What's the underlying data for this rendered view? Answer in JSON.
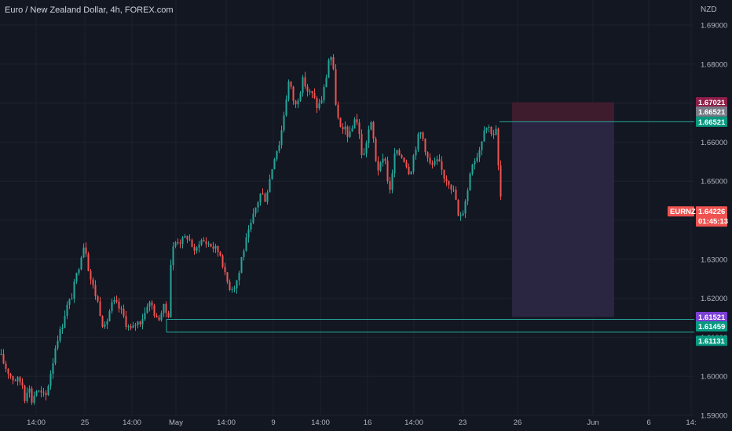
{
  "header": {
    "title": "Euro / New Zealand Dollar, 4h, FOREX.com",
    "currency": "NZD"
  },
  "colors": {
    "background": "#131722",
    "up": "#26a69a",
    "down": "#ef5350",
    "grid": "#1e222d",
    "text": "#b2b5be",
    "level_line": "#26a69a",
    "target_zone": "#2a2541",
    "stop_zone": "#3e1c2e"
  },
  "chart_data": {
    "type": "candlestick",
    "symbol": "EURNZD",
    "timeframe": "4h",
    "ylim": [
      1.588,
      1.692
    ],
    "yticks": [
      "1.69000",
      "1.68000",
      "1.67000",
      "1.66000",
      "1.65000",
      "1.64000",
      "1.63000",
      "1.62000",
      "1.61000",
      "1.60000",
      "1.59000"
    ],
    "xticks": [
      {
        "label": "14:00",
        "x": 46
      },
      {
        "label": "25",
        "x": 108
      },
      {
        "label": "14:00",
        "x": 168
      },
      {
        "label": "May",
        "x": 224
      },
      {
        "label": "14:00",
        "x": 288
      },
      {
        "label": "9",
        "x": 348
      },
      {
        "label": "14:00",
        "x": 408
      },
      {
        "label": "16",
        "x": 468
      },
      {
        "label": "14:00",
        "x": 527
      },
      {
        "label": "23",
        "x": 589
      },
      {
        "label": "26",
        "x": 659
      },
      {
        "label": "Jun",
        "x": 755
      },
      {
        "label": "6",
        "x": 826
      },
      {
        "label": "14:",
        "x": 880
      }
    ],
    "anchors": [
      [
        0,
        1.6055
      ],
      [
        8,
        1.602
      ],
      [
        16,
        1.5995
      ],
      [
        22,
        1.599
      ],
      [
        28,
        1.5985
      ],
      [
        32,
        1.594
      ],
      [
        36,
        1.5985
      ],
      [
        40,
        1.5935
      ],
      [
        46,
        1.5965
      ],
      [
        52,
        1.5955
      ],
      [
        58,
        1.5945
      ],
      [
        64,
        1.6005
      ],
      [
        68,
        1.6045
      ],
      [
        72,
        1.6095
      ],
      [
        78,
        1.612
      ],
      [
        84,
        1.6175
      ],
      [
        90,
        1.6195
      ],
      [
        96,
        1.6245
      ],
      [
        100,
        1.628
      ],
      [
        104,
        1.632
      ],
      [
        108,
        1.6345
      ],
      [
        112,
        1.6285
      ],
      [
        116,
        1.6245
      ],
      [
        120,
        1.622
      ],
      [
        126,
        1.618
      ],
      [
        130,
        1.614
      ],
      [
        134,
        1.612
      ],
      [
        138,
        1.616
      ],
      [
        144,
        1.619
      ],
      [
        150,
        1.618
      ],
      [
        156,
        1.616
      ],
      [
        162,
        1.613
      ],
      [
        168,
        1.6115
      ],
      [
        172,
        1.6135
      ],
      [
        178,
        1.614
      ],
      [
        184,
        1.616
      ],
      [
        188,
        1.619
      ],
      [
        194,
        1.618
      ],
      [
        200,
        1.614
      ],
      [
        204,
        1.616
      ],
      [
        210,
        1.618
      ],
      [
        214,
        1.614
      ],
      [
        218,
        1.631
      ],
      [
        222,
        1.634
      ],
      [
        226,
        1.635
      ],
      [
        232,
        1.6345
      ],
      [
        238,
        1.636
      ],
      [
        244,
        1.634
      ],
      [
        248,
        1.631
      ],
      [
        254,
        1.635
      ],
      [
        260,
        1.6345
      ],
      [
        266,
        1.634
      ],
      [
        272,
        1.633
      ],
      [
        278,
        1.632
      ],
      [
        282,
        1.631
      ],
      [
        286,
        1.626
      ],
      [
        292,
        1.623
      ],
      [
        298,
        1.623
      ],
      [
        304,
        1.626
      ],
      [
        308,
        1.631
      ],
      [
        314,
        1.635
      ],
      [
        320,
        1.639
      ],
      [
        326,
        1.6435
      ],
      [
        332,
        1.647
      ],
      [
        338,
        1.6455
      ],
      [
        344,
        1.651
      ],
      [
        350,
        1.657
      ],
      [
        356,
        1.66
      ],
      [
        360,
        1.665
      ],
      [
        364,
        1.671
      ],
      [
        368,
        1.676
      ],
      [
        372,
        1.672
      ],
      [
        376,
        1.669
      ],
      [
        380,
        1.672
      ],
      [
        386,
        1.676
      ],
      [
        392,
        1.673
      ],
      [
        398,
        1.672
      ],
      [
        404,
        1.669
      ],
      [
        408,
        1.67
      ],
      [
        412,
        1.673
      ],
      [
        416,
        1.6775
      ],
      [
        420,
        1.6835
      ],
      [
        424,
        1.679
      ],
      [
        428,
        1.669
      ],
      [
        432,
        1.664
      ],
      [
        436,
        1.662
      ],
      [
        440,
        1.664
      ],
      [
        444,
        1.661
      ],
      [
        448,
        1.663
      ],
      [
        452,
        1.667
      ],
      [
        456,
        1.664
      ],
      [
        462,
        1.655
      ],
      [
        468,
        1.662
      ],
      [
        472,
        1.665
      ],
      [
        476,
        1.66
      ],
      [
        480,
        1.653
      ],
      [
        486,
        1.654
      ],
      [
        490,
        1.657
      ],
      [
        494,
        1.649
      ],
      [
        498,
        1.648
      ],
      [
        502,
        1.657
      ],
      [
        508,
        1.657
      ],
      [
        514,
        1.656
      ],
      [
        518,
        1.654
      ],
      [
        522,
        1.652
      ],
      [
        528,
        1.658
      ],
      [
        532,
        1.661
      ],
      [
        536,
        1.6625
      ],
      [
        540,
        1.66
      ],
      [
        544,
        1.656
      ],
      [
        548,
        1.654
      ],
      [
        552,
        1.654
      ],
      [
        556,
        1.655
      ],
      [
        560,
        1.654
      ],
      [
        566,
        1.651
      ],
      [
        572,
        1.65
      ],
      [
        576,
        1.648
      ],
      [
        580,
        1.646
      ],
      [
        584,
        1.64
      ],
      [
        588,
        1.641
      ],
      [
        592,
        1.645
      ],
      [
        596,
        1.648
      ],
      [
        600,
        1.655
      ],
      [
        606,
        1.656
      ],
      [
        612,
        1.659
      ],
      [
        616,
        1.664
      ],
      [
        620,
        1.664
      ],
      [
        624,
        1.6635
      ],
      [
        628,
        1.662
      ],
      [
        632,
        1.663
      ],
      [
        636,
        1.648
      ],
      [
        640,
        1.6423
      ]
    ],
    "current_price": "1.64226",
    "countdown": "01:45:13",
    "position": {
      "stop": "1.67021",
      "entry": "1.66521",
      "entry_projection": "1.66521",
      "target": "1.61521",
      "support_high": "1.61459",
      "support_low": "1.61131",
      "start_x": 652,
      "end_x": 782
    }
  }
}
